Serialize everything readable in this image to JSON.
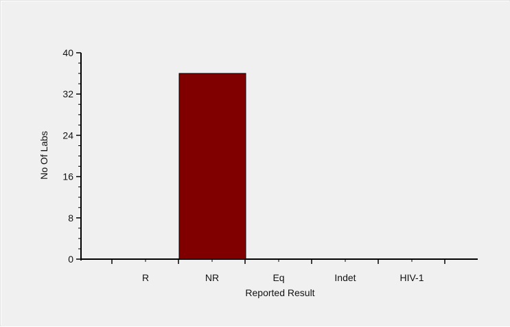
{
  "chart_data": {
    "type": "bar",
    "categories": [
      "R",
      "NR",
      "Eq",
      "Indet",
      "HIV-1"
    ],
    "values": [
      0,
      36,
      0,
      0,
      0
    ],
    "title": "",
    "xlabel": "Reported Result",
    "ylabel": "No Of Labs",
    "ylim": [
      0,
      40
    ],
    "yticks": [
      0,
      8,
      16,
      24,
      32,
      40
    ],
    "grid": false,
    "legend": "none",
    "bar_color": "#800000",
    "bar_edge_color": "#000000",
    "background_color": "#f0f0f0"
  }
}
